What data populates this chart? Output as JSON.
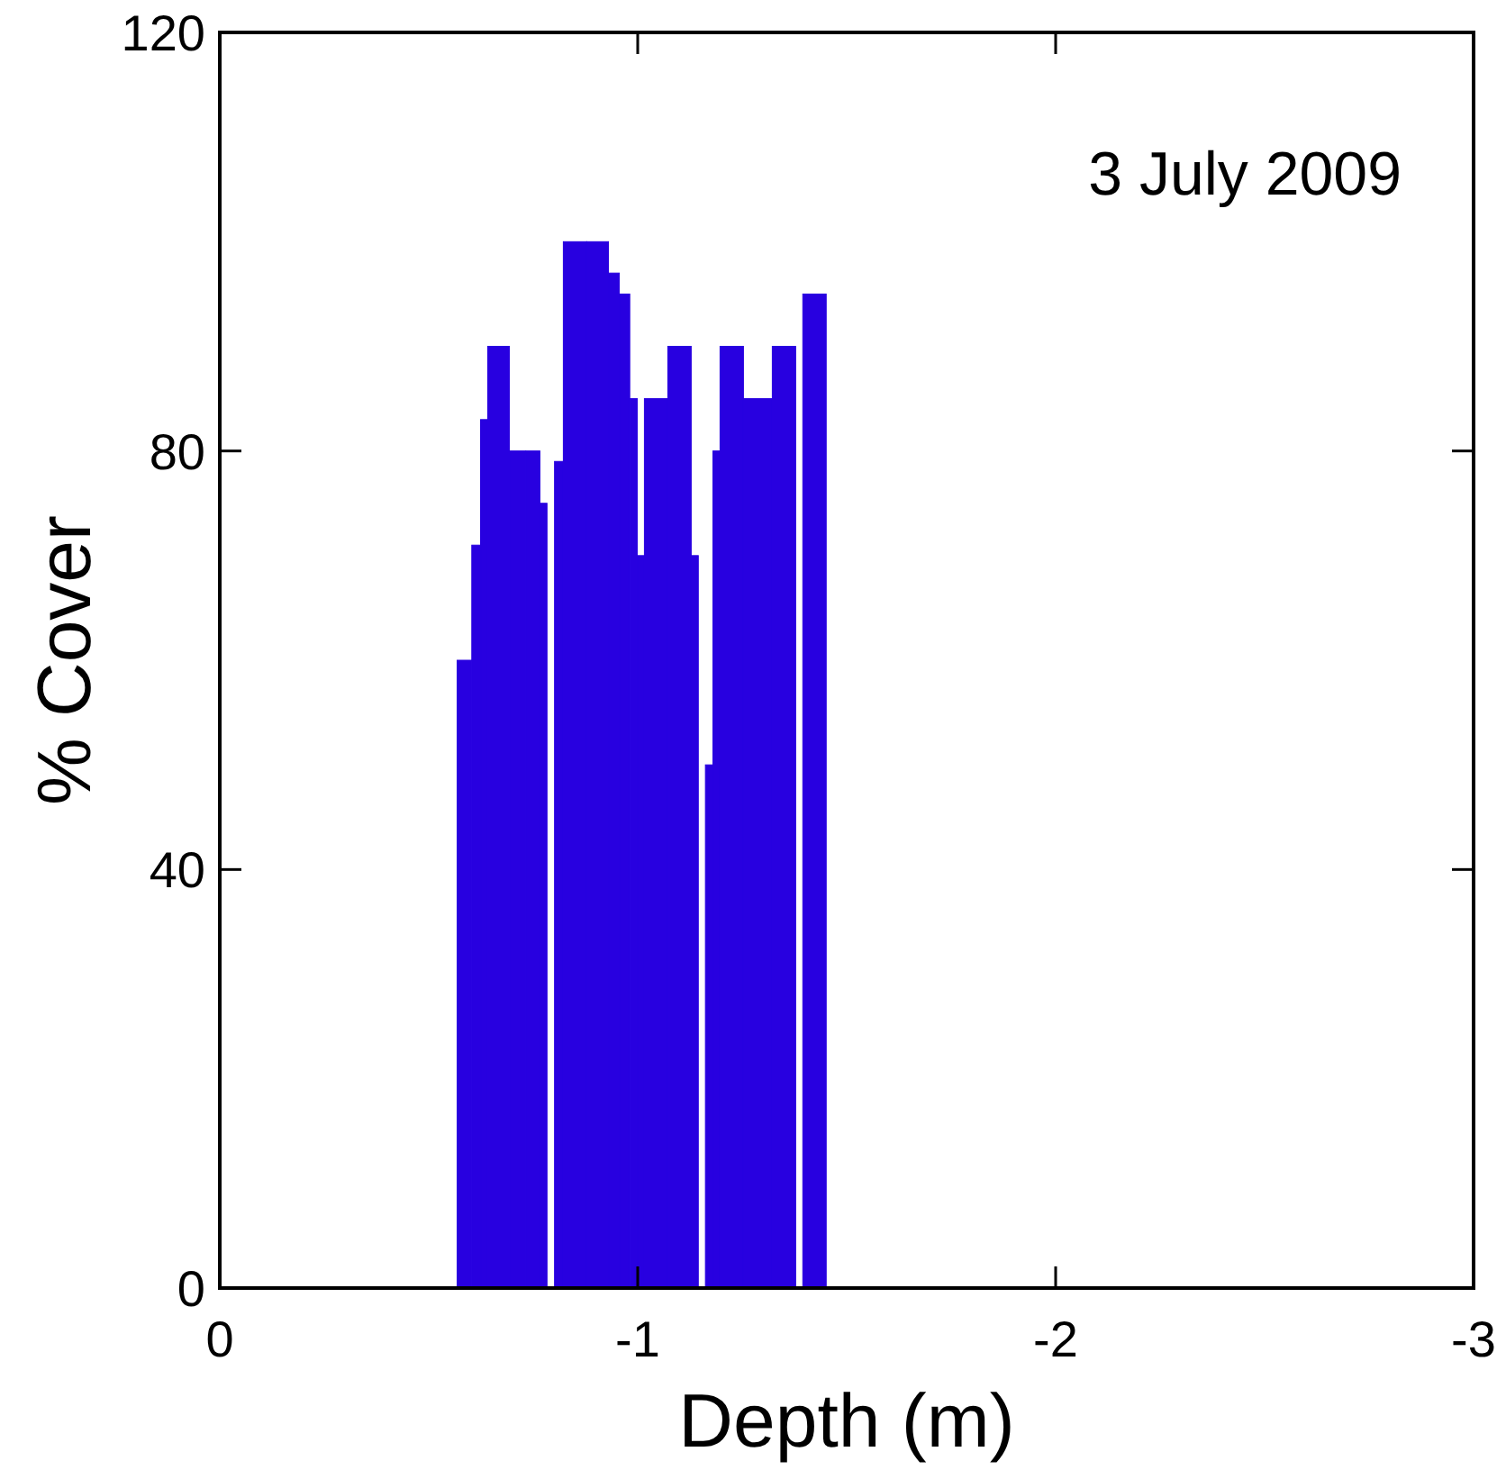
{
  "chart_data": {
    "type": "histogram",
    "xlabel": "Depth (m)",
    "ylabel": "% Cover",
    "annotations": [
      "3 July 2009"
    ],
    "bins": [
      -0.568,
      -0.603,
      -0.624,
      -0.641,
      -0.693,
      -0.732,
      -0.766,
      -0.783,
      -0.801,
      -0.822,
      -0.878,
      -0.93,
      -0.956,
      -0.981,
      -0.999,
      -1.016,
      -1.072,
      -1.128,
      -1.145,
      -1.162,
      -1.18,
      -1.197,
      -1.253,
      -1.322,
      -1.378,
      -1.395,
      -1.451
    ],
    "values": [
      60,
      71,
      83,
      90,
      80,
      80,
      75,
      0,
      79,
      100,
      100,
      97,
      95,
      85,
      70,
      85,
      90,
      70,
      0,
      50,
      80,
      90,
      85,
      90,
      0,
      95
    ],
    "color": "#2800e0",
    "xlim": [
      0,
      -3
    ],
    "xticks": [
      0,
      -1,
      -2,
      -3
    ],
    "ylim": [
      0,
      120
    ],
    "yticks": [
      0,
      40,
      80,
      120
    ],
    "grid": false
  }
}
